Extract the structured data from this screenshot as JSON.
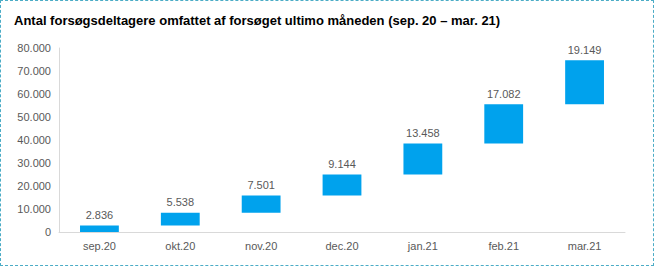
{
  "chart_data": {
    "type": "waterfall",
    "title": "Antal forsøgsdeltagere omfattet af forsøget ultimo måneden (sep. 20 – mar. 21)",
    "categories": [
      "sep.20",
      "okt.20",
      "nov.20",
      "dec.20",
      "jan.21",
      "feb.21",
      "mar.21"
    ],
    "values": [
      2836,
      5538,
      7501,
      9144,
      13458,
      17082,
      19149
    ],
    "value_labels": [
      "2.836",
      "5.538",
      "7.501",
      "9.144",
      "13.458",
      "17.082",
      "19.149"
    ],
    "color": "#00a2ed",
    "ylim": [
      0,
      80000
    ],
    "yticks": [
      0,
      {
        "value": 10000,
        "label": "10.000"
      },
      {
        "value": 20000,
        "label": "20.000"
      },
      {
        "value": 30000,
        "label": "30.000"
      },
      {
        "value": 40000,
        "label": "40.000"
      },
      {
        "value": 50000,
        "label": "50.000"
      },
      {
        "value": 60000,
        "label": "60.000"
      },
      {
        "value": 70000,
        "label": "70.000"
      },
      {
        "value": 80000,
        "label": "80.000"
      }
    ],
    "grid": false,
    "data_labels": true
  }
}
